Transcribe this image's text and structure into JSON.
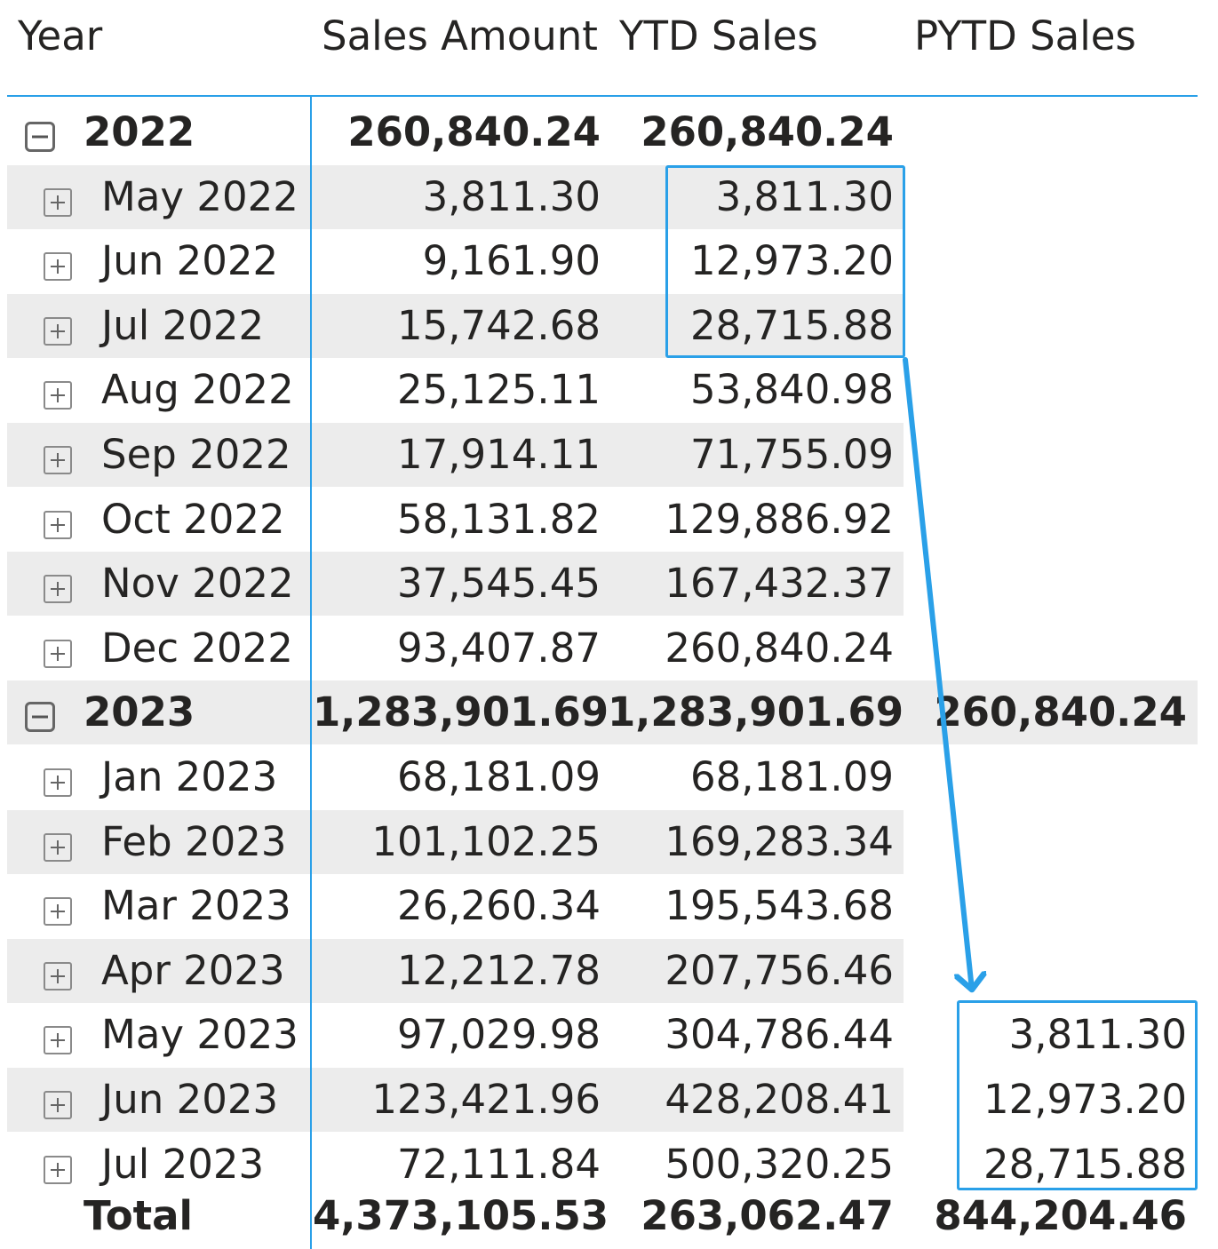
{
  "headers": {
    "year": "Year",
    "sales": "Sales Amount",
    "ytd": "YTD Sales",
    "pytd": "PYTD Sales"
  },
  "rows": [
    {
      "type": "year",
      "label": "2022",
      "sales": "260,840.24",
      "ytd": "260,840.24",
      "pytd": ""
    },
    {
      "type": "month",
      "label": "May 2022",
      "sales": "3,811.30",
      "ytd": "3,811.30",
      "pytd": ""
    },
    {
      "type": "month",
      "label": "Jun 2022",
      "sales": "9,161.90",
      "ytd": "12,973.20",
      "pytd": ""
    },
    {
      "type": "month",
      "label": "Jul 2022",
      "sales": "15,742.68",
      "ytd": "28,715.88",
      "pytd": ""
    },
    {
      "type": "month",
      "label": "Aug 2022",
      "sales": "25,125.11",
      "ytd": "53,840.98",
      "pytd": ""
    },
    {
      "type": "month",
      "label": "Sep 2022",
      "sales": "17,914.11",
      "ytd": "71,755.09",
      "pytd": ""
    },
    {
      "type": "month",
      "label": "Oct 2022",
      "sales": "58,131.82",
      "ytd": "129,886.92",
      "pytd": ""
    },
    {
      "type": "month",
      "label": "Nov 2022",
      "sales": "37,545.45",
      "ytd": "167,432.37",
      "pytd": ""
    },
    {
      "type": "month",
      "label": "Dec 2022",
      "sales": "93,407.87",
      "ytd": "260,840.24",
      "pytd": ""
    },
    {
      "type": "year",
      "label": "2023",
      "sales": "1,283,901.69",
      "ytd": "1,283,901.69",
      "pytd": "260,840.24"
    },
    {
      "type": "month",
      "label": "Jan 2023",
      "sales": "68,181.09",
      "ytd": "68,181.09",
      "pytd": ""
    },
    {
      "type": "month",
      "label": "Feb 2023",
      "sales": "101,102.25",
      "ytd": "169,283.34",
      "pytd": ""
    },
    {
      "type": "month",
      "label": "Mar 2023",
      "sales": "26,260.34",
      "ytd": "195,543.68",
      "pytd": ""
    },
    {
      "type": "month",
      "label": "Apr 2023",
      "sales": "12,212.78",
      "ytd": "207,756.46",
      "pytd": ""
    },
    {
      "type": "month",
      "label": "May 2023",
      "sales": "97,029.98",
      "ytd": "304,786.44",
      "pytd": "3,811.30"
    },
    {
      "type": "month",
      "label": "Jun 2023",
      "sales": "123,421.96",
      "ytd": "428,208.41",
      "pytd": "12,973.20"
    },
    {
      "type": "month",
      "label": "Jul 2023",
      "sales": "72,111.84",
      "ytd": "500,320.25",
      "pytd": "28,715.88"
    }
  ],
  "total": {
    "label": "Total",
    "sales": "4,373,105.53",
    "ytd": "263,062.47",
    "pytd": "844,204.46"
  },
  "accent_color": "#2aa0e8",
  "row_shade_color": "#ececec"
}
